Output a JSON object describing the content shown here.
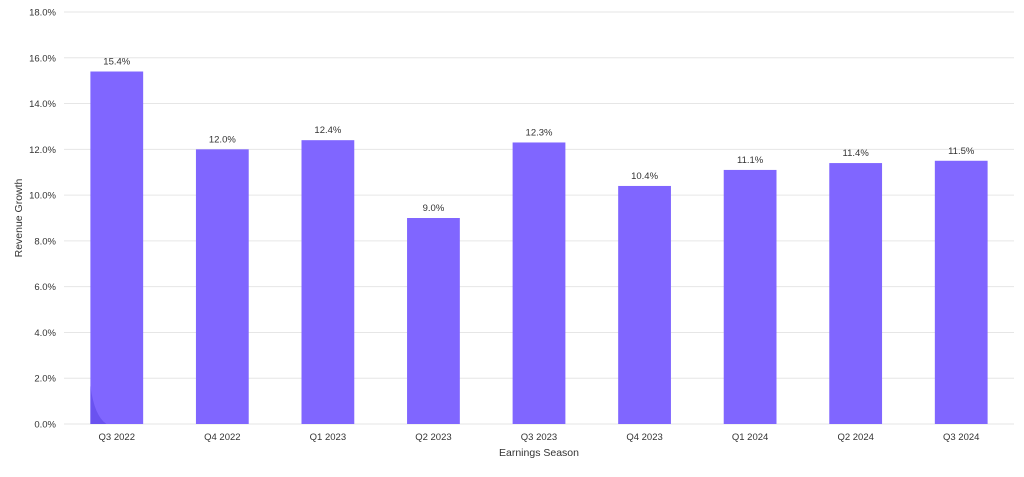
{
  "chart_data": {
    "type": "bar",
    "title": "",
    "xlabel": "Earnings Season",
    "ylabel": "Revenue Growth",
    "categories": [
      "Q3 2022",
      "Q4 2022",
      "Q1 2023",
      "Q2 2023",
      "Q3 2023",
      "Q4 2023",
      "Q1 2024",
      "Q2 2024",
      "Q3 2024"
    ],
    "values": [
      15.4,
      12.0,
      12.4,
      9.0,
      12.3,
      10.4,
      11.1,
      11.4,
      11.5
    ],
    "data_labels": [
      "15.4%",
      "12.0%",
      "12.4%",
      "9.0%",
      "12.3%",
      "10.4%",
      "11.1%",
      "11.4%",
      "11.5%"
    ],
    "ylim": [
      0,
      18
    ],
    "yticks": [
      0,
      2,
      4,
      6,
      8,
      10,
      12,
      14,
      16,
      18
    ],
    "ytick_labels": [
      "0.0%",
      "2.0%",
      "4.0%",
      "6.0%",
      "8.0%",
      "10.0%",
      "12.0%",
      "14.0%",
      "16.0%",
      "18.0%"
    ],
    "grid": true,
    "legend": "none",
    "colors": {
      "bar": "#8066ff",
      "bar_accent": "#6a52f0",
      "grid": "#e6e6e6",
      "text": "#333333"
    }
  }
}
